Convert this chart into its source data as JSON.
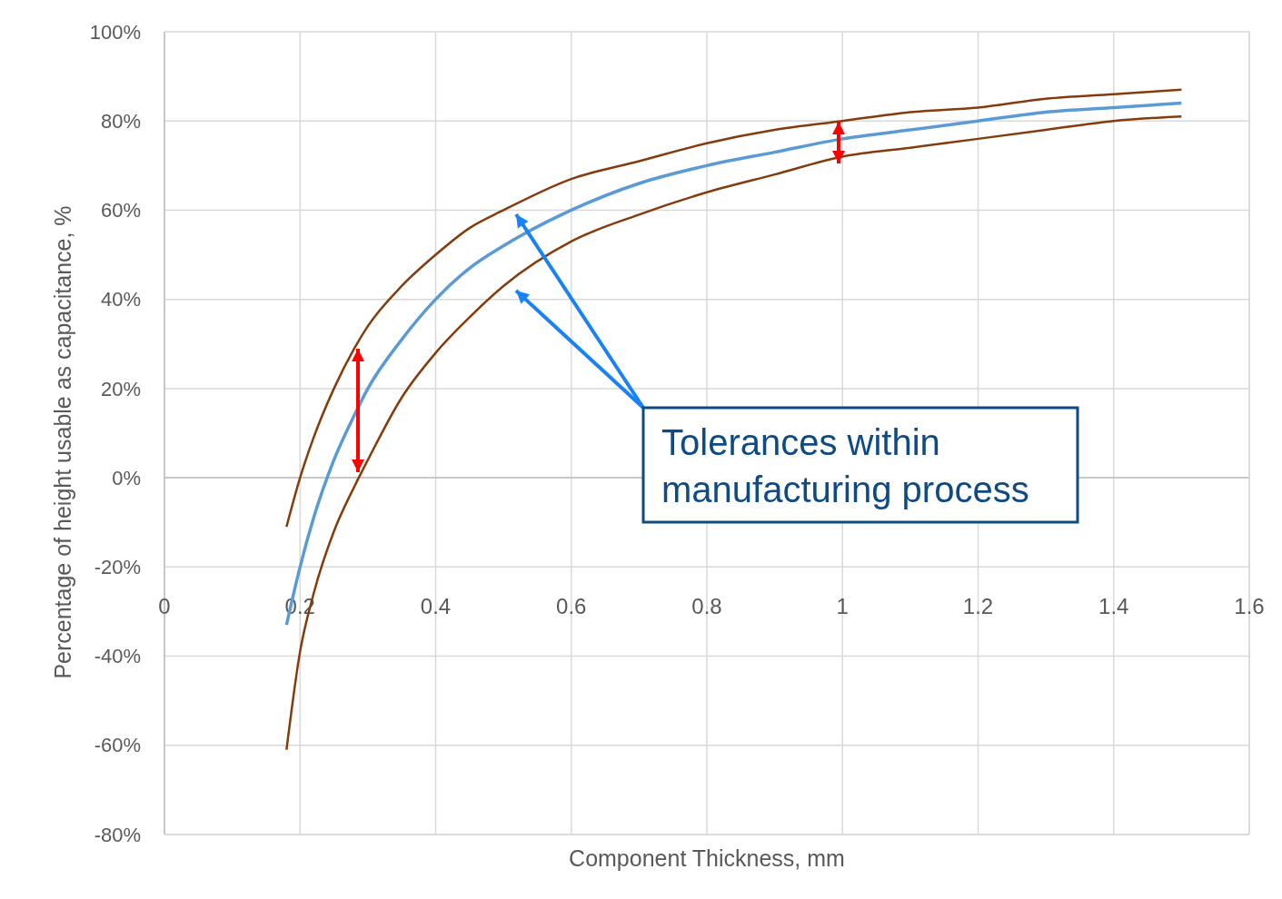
{
  "chart_data": {
    "type": "line",
    "xlabel": "Component Thickness, mm",
    "ylabel": "Percentage of height usable as capacitance, %",
    "x": [
      0.18,
      0.2,
      0.22,
      0.25,
      0.28,
      0.3,
      0.35,
      0.4,
      0.45,
      0.5,
      0.6,
      0.7,
      0.8,
      0.9,
      1.0,
      1.1,
      1.2,
      1.3,
      1.4,
      1.5
    ],
    "series": [
      {
        "color": "#843c0c",
        "values": [
          -11,
          0,
          9,
          20,
          29,
          34,
          43,
          50,
          56,
          60,
          67,
          71,
          75,
          78,
          80,
          82,
          83,
          85,
          86,
          87
        ]
      },
      {
        "color": "#5b9bd5",
        "values": [
          -33,
          -20,
          -9,
          4,
          14,
          20,
          31,
          40,
          47,
          52,
          60,
          66,
          70,
          73,
          76,
          78,
          80,
          82,
          83,
          84
        ]
      },
      {
        "color": "#843c0c",
        "values": [
          -61,
          -39,
          -26,
          -12,
          -2,
          4,
          18,
          28,
          36,
          43,
          53,
          59,
          64,
          68,
          72,
          74,
          76,
          78,
          80,
          81
        ]
      }
    ],
    "xlim": [
      0,
      1.6
    ],
    "xticks": [
      0,
      0.2,
      0.4,
      0.6,
      0.8,
      1,
      1.2,
      1.4,
      1.6
    ],
    "ylim": [
      -80,
      100
    ],
    "yticks": [
      {
        "value": -80,
        "label": "-80%"
      },
      {
        "value": -60,
        "label": "-60%"
      },
      {
        "value": -40,
        "label": "-40%"
      },
      {
        "value": -20,
        "label": "-20%"
      },
      {
        "value": 0,
        "label": "0%"
      },
      {
        "value": 20,
        "label": "20%"
      },
      {
        "value": 40,
        "label": "40%"
      },
      {
        "value": 60,
        "label": "60%"
      },
      {
        "value": 80,
        "label": "80%"
      },
      {
        "value": 100,
        "label": "100%"
      }
    ],
    "grid": true,
    "marker": "none",
    "line_style": "solid",
    "annotations": [
      "Tolerances within manufacturing process"
    ]
  }
}
